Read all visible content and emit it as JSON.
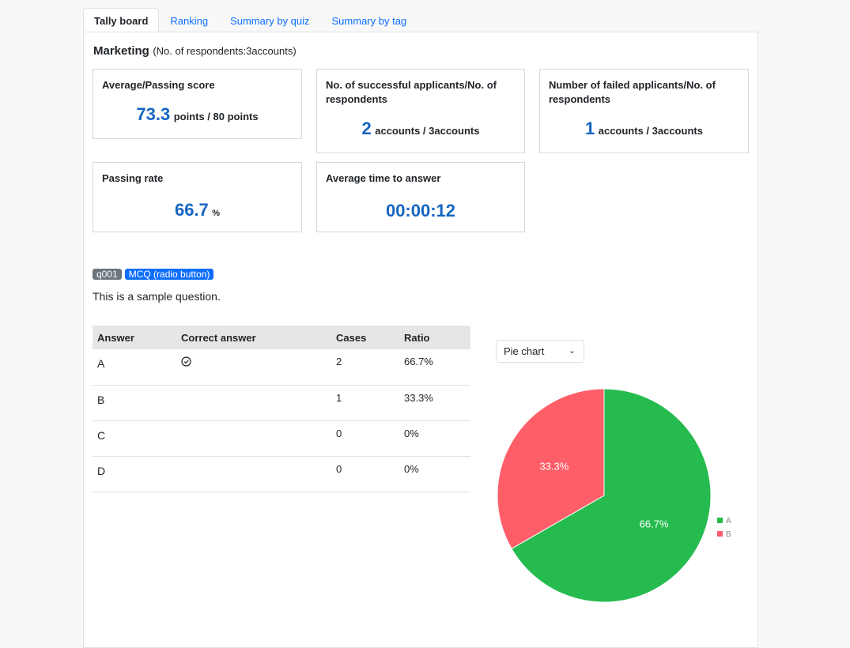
{
  "tabs": [
    {
      "label": "Tally board",
      "active": true
    },
    {
      "label": "Ranking",
      "active": false
    },
    {
      "label": "Summary by quiz",
      "active": false
    },
    {
      "label": "Summary by tag",
      "active": false
    }
  ],
  "header": {
    "department": "Marketing",
    "respondents": "(No. of respondents:3accounts)"
  },
  "cards": {
    "avg_score": {
      "title": "Average/Passing score",
      "value": "73.3",
      "unit": "points / 80 points"
    },
    "success": {
      "title": "No. of successful applicants/No. of respondents",
      "value": "2",
      "unit": "accounts / 3accounts"
    },
    "failed": {
      "title": "Number of failed applicants/No. of respondents",
      "value": "1",
      "unit": "accounts / 3accounts"
    },
    "pass_rate": {
      "title": "Passing rate",
      "value": "66.7",
      "unit": "%"
    },
    "avg_time": {
      "title": "Average time to answer",
      "value": "00:00:12"
    }
  },
  "question": {
    "id_badge": "q001",
    "type_badge": "MCQ (radio button)",
    "text": "This is a sample question."
  },
  "table": {
    "headers": [
      "Answer",
      "Correct answer",
      "Cases",
      "Ratio"
    ],
    "rows": [
      {
        "answer": "A",
        "correct": true,
        "cases": "2",
        "ratio": "66.7%"
      },
      {
        "answer": "B",
        "correct": false,
        "cases": "1",
        "ratio": "33.3%"
      },
      {
        "answer": "C",
        "correct": false,
        "cases": "0",
        "ratio": "0%"
      },
      {
        "answer": "D",
        "correct": false,
        "cases": "0",
        "ratio": "0%"
      }
    ],
    "correct_icon": "check-circle-icon"
  },
  "chart_select": {
    "value": "Pie chart",
    "icon": "chevron-down-icon"
  },
  "chart_data": {
    "type": "pie",
    "categories": [
      "A",
      "B"
    ],
    "values": [
      66.7,
      33.3
    ],
    "labels": [
      "66.7%",
      "33.3%"
    ],
    "colors": [
      "#25bb4e",
      "#fe5e68"
    ],
    "legend": "right"
  }
}
